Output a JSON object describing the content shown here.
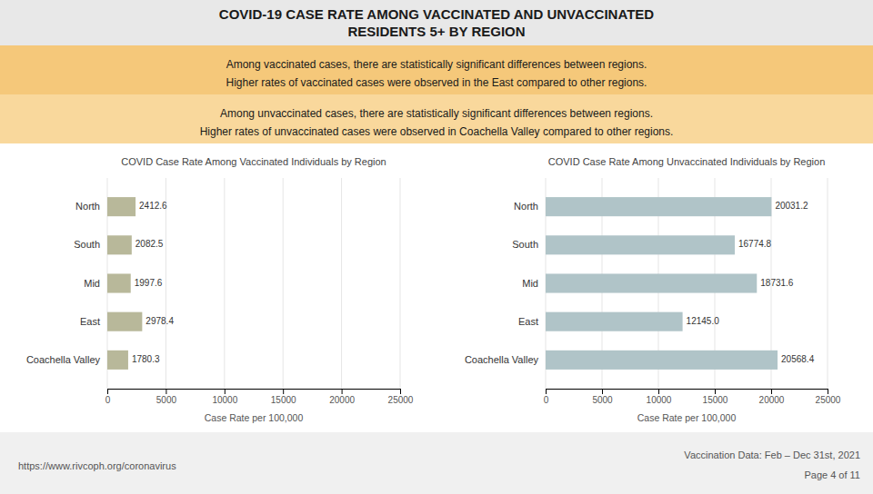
{
  "title": "COVID-19 CASE RATE AMONG VACCINATED AND UNVACCINATED\nRESIDENTS 5+ BY REGION",
  "annotations": [
    "Among vaccinated cases, there are statistically significant differences between regions.",
    "Higher rates of vaccinated cases were observed in the East compared to other regions.",
    "Among unvaccinated cases, there are statistically significant differences between regions.",
    "Higher rates of unvaccinated cases were observed in Coachella Valley compared to other regions.",
    "https://www.rivcoph.org/coronavirus",
    "Vaccination Data: Feb – Dec 31st, 2021",
    "Page 4 of 11"
  ],
  "chart_data": [
    {
      "type": "bar",
      "orientation": "horizontal",
      "title": "COVID Case Rate Among Vaccinated Individuals by Region",
      "categories": [
        "Coachella Valley",
        "East",
        "Mid",
        "South",
        "North"
      ],
      "values": [
        1780.3,
        2978.4,
        1997.6,
        2082.5,
        2412.6
      ],
      "color": "#b8b89a",
      "xlabel": "Case Rate per 100,000",
      "xlim": [
        0,
        25000
      ],
      "xticks": [
        0,
        5000,
        10000,
        15000,
        20000,
        25000
      ],
      "grid": true,
      "data_labels": true
    },
    {
      "type": "bar",
      "orientation": "horizontal",
      "title": "COVID Case Rate Among Unvaccinated Individuals by Region",
      "categories": [
        "Coachella Valley",
        "East",
        "Mid",
        "South",
        "North"
      ],
      "values": [
        20568.4,
        12145.0,
        18731.6,
        16774.8,
        20031.2
      ],
      "value_labels": [
        "20568.4",
        "12145.0",
        "18731.6",
        "16774.8",
        "20031.2"
      ],
      "color": "#b0c4c8",
      "xlabel": "Case Rate per 100,000",
      "xlim": [
        0,
        25000
      ],
      "xticks": [
        0,
        5000,
        10000,
        15000,
        20000,
        25000
      ],
      "grid": true,
      "data_labels": true
    }
  ]
}
